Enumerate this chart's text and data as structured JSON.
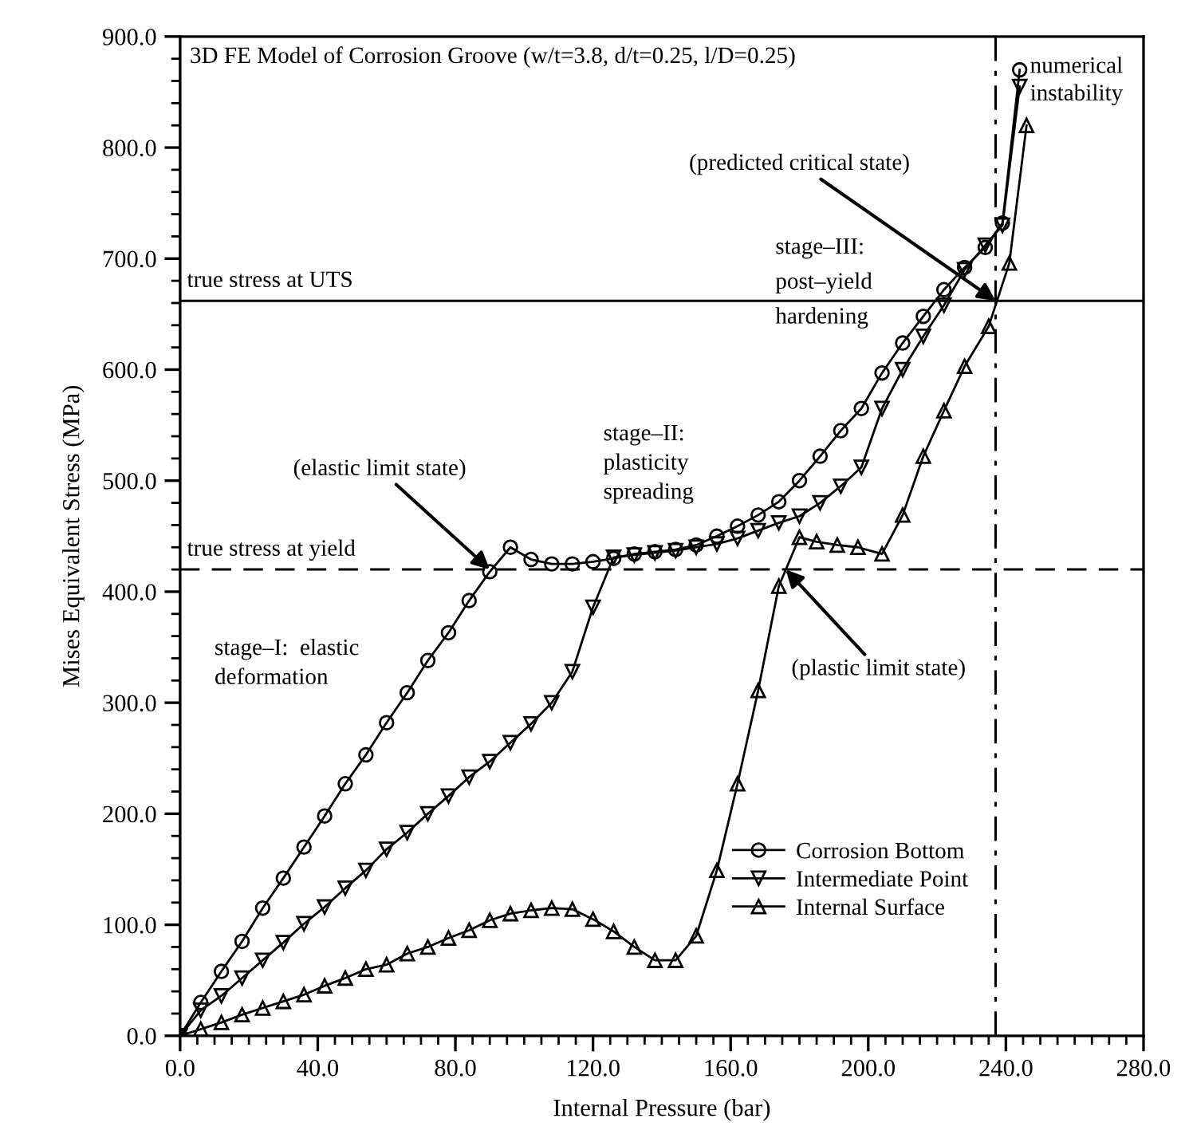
{
  "chart_data": {
    "type": "line",
    "title": "3D FE Model of Corrosion Groove (w/t=3.8, d/t=0.25, l/D=0.25)",
    "xlabel": "Internal Pressure (bar)",
    "ylabel": "Mises Equivalent Stress (MPa)",
    "xlim": [
      0,
      280
    ],
    "ylim": [
      0,
      900
    ],
    "xticks": [
      {
        "value": 0,
        "label": "0.0"
      },
      {
        "value": 40,
        "label": "40.0"
      },
      {
        "value": 80,
        "label": "80.0"
      },
      {
        "value": 120,
        "label": "120.0"
      },
      {
        "value": 160,
        "label": "160.0"
      },
      {
        "value": 200,
        "label": "200.0"
      },
      {
        "value": 240,
        "label": "240.0"
      },
      {
        "value": 280,
        "label": "280.0"
      }
    ],
    "yticks": [
      {
        "value": 0,
        "label": "0.0"
      },
      {
        "value": 100,
        "label": "100.0"
      },
      {
        "value": 200,
        "label": "200.0"
      },
      {
        "value": 300,
        "label": "300.0"
      },
      {
        "value": 400,
        "label": "400.0"
      },
      {
        "value": 500,
        "label": "500.0"
      },
      {
        "value": 600,
        "label": "600.0"
      },
      {
        "value": 700,
        "label": "700.0"
      },
      {
        "value": 800,
        "label": "800.0"
      },
      {
        "value": 900,
        "label": "900.0"
      }
    ],
    "grid": false,
    "legend": "bottom right",
    "line_style": "solid",
    "series": [
      {
        "name": "Corrosion Bottom",
        "color": "#000000",
        "marker": "circle",
        "x": [
          0,
          6,
          12,
          18,
          24,
          30,
          36,
          42,
          48,
          54,
          60,
          66,
          72,
          78,
          84,
          90,
          96,
          102,
          108,
          114,
          120,
          126,
          132,
          138,
          144,
          150,
          156,
          162,
          168,
          174,
          180,
          186,
          192,
          198,
          204,
          210,
          216,
          222,
          228,
          234,
          239,
          244
        ],
        "values": [
          0,
          30,
          58,
          85,
          115,
          142,
          170,
          198,
          227,
          253,
          282,
          309,
          338,
          363,
          392,
          418,
          440,
          429,
          425,
          425,
          427,
          430,
          434,
          436,
          438,
          442,
          450,
          459,
          469,
          481,
          500,
          522,
          545,
          565,
          597,
          624,
          648,
          672,
          692,
          710,
          732,
          870
        ]
      },
      {
        "name": "Intermediate Point",
        "color": "#000000",
        "marker": "triangle_down",
        "x": [
          0,
          6,
          12,
          18,
          24,
          30,
          36,
          42,
          48,
          54,
          60,
          66,
          72,
          78,
          84,
          90,
          96,
          102,
          108,
          114,
          120,
          126,
          132,
          138,
          144,
          150,
          156,
          162,
          168,
          174,
          180,
          186,
          192,
          198,
          204,
          210,
          216,
          222,
          228,
          234,
          239,
          244
        ],
        "values": [
          0,
          23,
          36,
          52,
          68,
          84,
          101,
          116,
          133,
          149,
          168,
          183,
          200,
          216,
          233,
          247,
          264,
          281,
          300,
          328,
          386,
          431,
          433,
          435,
          437,
          440,
          443,
          448,
          455,
          462,
          468,
          480,
          495,
          512,
          565,
          600,
          630,
          658,
          690,
          712,
          730,
          855
        ]
      },
      {
        "name": "Internal Surface",
        "color": "#000000",
        "marker": "triangle",
        "x": [
          0,
          6,
          12,
          18,
          24,
          30,
          36,
          42,
          48,
          54,
          60,
          66,
          72,
          78,
          84,
          90,
          96,
          102,
          108,
          114,
          120,
          126,
          132,
          138,
          144,
          150,
          156,
          162,
          168,
          174,
          180,
          185,
          191,
          197,
          204,
          210,
          216,
          222,
          228,
          235,
          241,
          246
        ],
        "values": [
          0,
          6,
          12,
          19,
          25,
          31,
          37,
          45,
          52,
          60,
          64,
          74,
          80,
          88,
          95,
          104,
          110,
          113,
          115,
          114,
          105,
          94,
          80,
          68,
          68,
          90,
          149,
          227,
          311,
          405,
          449,
          445,
          442,
          440,
          434,
          469,
          522,
          563,
          603,
          639,
          696,
          820
        ]
      }
    ],
    "ref_lines": [
      {
        "axis": "y",
        "value": 662,
        "label": "true stress at UTS",
        "line_style": "solid"
      },
      {
        "axis": "y",
        "value": 420,
        "label": "true stress at yield",
        "line_style": "dashed"
      },
      {
        "axis": "x",
        "value": 237,
        "label": null,
        "line_style": "dashdot"
      }
    ],
    "annotations": [
      {
        "text": "(elastic limit state)",
        "x": 90,
        "y": 420
      },
      {
        "text": "(predicted critical state)",
        "x": 237,
        "y": 662
      },
      {
        "text": "(plastic limit state)",
        "x": 176,
        "y": 420
      },
      {
        "text": "numerical\ninstability",
        "x": 244,
        "y": 870
      },
      "stage–I:  elastic\ndeformation",
      "stage–II:\nplasticity\nspreading",
      "stage–III:\npost–yield\nhardening"
    ]
  }
}
